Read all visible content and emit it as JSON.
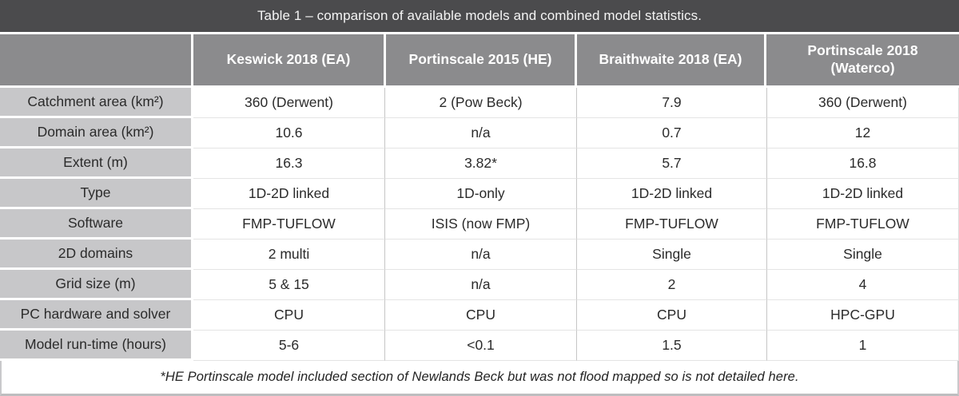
{
  "title": "Table 1 – comparison of available models and combined model statistics.",
  "columns": [
    "Keswick 2018 (EA)",
    "Portinscale 2015 (HE)",
    "Braithwaite 2018 (EA)",
    "Portinscale 2018 (Waterco)"
  ],
  "rows": [
    {
      "label": "Catchment area (km²)",
      "values": [
        "360 (Derwent)",
        "2 (Pow Beck)",
        "7.9",
        "360 (Derwent)"
      ]
    },
    {
      "label": "Domain area (km²)",
      "values": [
        "10.6",
        "n/a",
        "0.7",
        "12"
      ]
    },
    {
      "label": "Extent (m)",
      "values": [
        "16.3",
        "3.82*",
        "5.7",
        "16.8"
      ]
    },
    {
      "label": "Type",
      "values": [
        "1D-2D linked",
        "1D-only",
        "1D-2D linked",
        "1D-2D linked"
      ]
    },
    {
      "label": "Software",
      "values": [
        "FMP-TUFLOW",
        "ISIS (now FMP)",
        "FMP-TUFLOW",
        "FMP-TUFLOW"
      ]
    },
    {
      "label": "2D domains",
      "values": [
        "2 multi",
        "n/a",
        "Single",
        "Single"
      ]
    },
    {
      "label": "Grid size (m)",
      "values": [
        "5 & 15",
        "n/a",
        "2",
        "4"
      ]
    },
    {
      "label": "PC hardware and solver",
      "values": [
        "CPU",
        "CPU",
        "CPU",
        "HPC-GPU"
      ]
    },
    {
      "label": "Model run-time (hours)",
      "values": [
        "5-6",
        "<0.1",
        "1.5",
        "1"
      ]
    }
  ],
  "footnote": "*HE Portinscale model included section of Newlands Beck but was not flood mapped so is not detailed here.",
  "colors": {
    "title_bar_bg": "#4b4b4d",
    "header_bg": "#8b8b8d",
    "row_label_bg": "#c7c7c9",
    "cell_bg": "#ffffff",
    "header_text": "#ffffff",
    "body_text": "#2b2b2b",
    "grid_line": "#c6c6c6"
  }
}
